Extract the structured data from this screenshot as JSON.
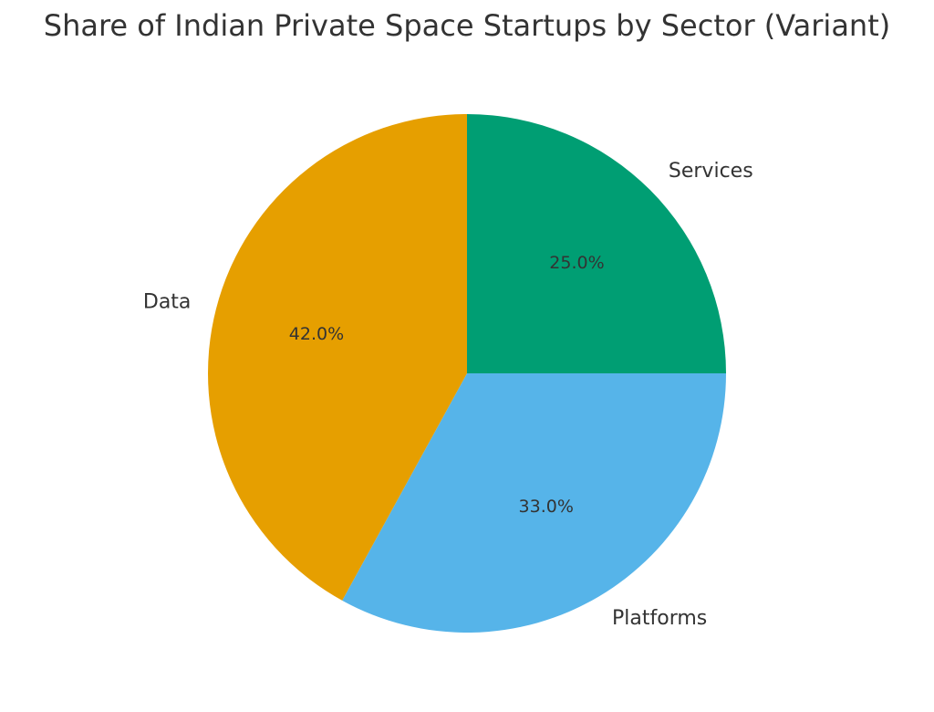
{
  "chart_data": {
    "type": "pie",
    "title": "Share of Indian Private Space Startups by Sector (Variant)",
    "categories": [
      "Services",
      "Platforms",
      "Data"
    ],
    "values": [
      25,
      33,
      42
    ],
    "value_labels": [
      "25.0%",
      "33.0%",
      "42.0%"
    ],
    "colors": [
      "#009E73",
      "#56B4E9",
      "#E69F00"
    ]
  }
}
